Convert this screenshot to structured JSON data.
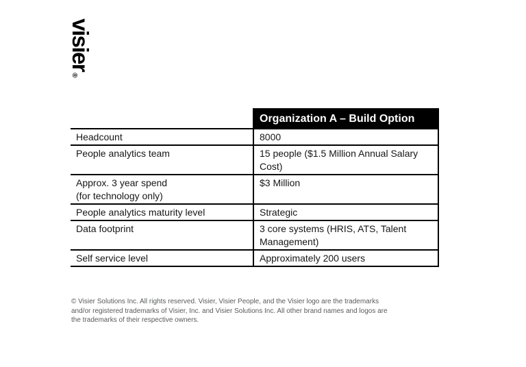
{
  "logo": {
    "text": "visier",
    "registered_mark": "®"
  },
  "table": {
    "header": {
      "title": "Organization A – Build Option"
    },
    "rows": [
      {
        "label": "Headcount",
        "value": "8000"
      },
      {
        "label": "People analytics team",
        "value": "15 people ($1.5 Million Annual Salary\nCost)"
      },
      {
        "label": "Approx. 3 year spend\n(for technology only)",
        "value": "$3 Million"
      },
      {
        "label": "People analytics maturity level",
        "value": "Strategic"
      },
      {
        "label": "Data footprint",
        "value": "3 core systems (HRIS, ATS, Talent\nManagement)"
      },
      {
        "label": "Self service level",
        "value": "Approximately 200 users"
      }
    ]
  },
  "footer": {
    "text": "© Visier Solutions Inc. All rights reserved. Visier, Visier People, and the Visier logo are the trademarks\nand/or registered trademarks of Visier, Inc. and Visier Solutions Inc. All other brand names and logos are\nthe trademarks of their respective owners."
  },
  "colors": {
    "background": "#ffffff",
    "border": "#000000",
    "header_bg": "#000000",
    "header_text": "#ffffff",
    "body_text": "#161616",
    "footer_text": "#58595b"
  }
}
